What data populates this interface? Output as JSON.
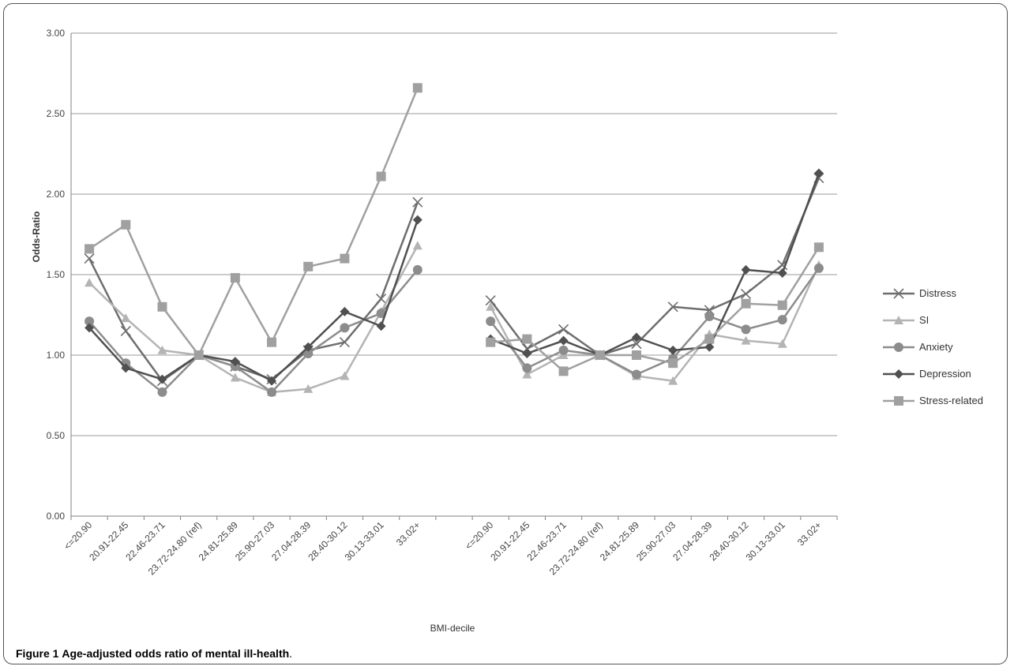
{
  "caption": {
    "label": "Figure 1",
    "text": "Age-adjusted odds ratio of mental ill-health"
  },
  "chart_data": {
    "type": "line",
    "xlabel": "BMI-decile",
    "ylabel": "Odds-Ratio",
    "ylim": [
      0,
      3
    ],
    "yticks": [
      "0.00",
      "0.50",
      "1.00",
      "1.50",
      "2.00",
      "2.50",
      "3.00"
    ],
    "grid": true,
    "legend_position": "right",
    "categories": [
      "<=20.90",
      "20.91-22.45",
      "22.46-23.71",
      "23.72-24.80 (ref)",
      "24.81-25.89",
      "25.90-27.03",
      "27.04-28.39",
      "28.40-30.12",
      "30.13-33.01",
      "33.02+"
    ],
    "groups": 2,
    "series": [
      {
        "name": "Distress",
        "marker": "x",
        "color": "#6e6e6e",
        "values": [
          [
            1.6,
            1.15,
            0.84,
            1.0,
            0.93,
            0.85,
            1.03,
            1.08,
            1.35,
            1.95
          ],
          [
            1.34,
            1.04,
            1.16,
            1.0,
            1.07,
            1.3,
            1.28,
            1.38,
            1.56,
            2.1
          ]
        ]
      },
      {
        "name": "SI",
        "marker": "triangle",
        "color": "#b4b4b4",
        "values": [
          [
            1.45,
            1.23,
            1.03,
            1.0,
            0.86,
            0.77,
            0.79,
            0.87,
            1.27,
            1.68
          ],
          [
            1.3,
            0.88,
            1.0,
            1.0,
            0.87,
            0.84,
            1.13,
            1.09,
            1.07,
            1.56
          ]
        ]
      },
      {
        "name": "Anxiety",
        "marker": "circle",
        "color": "#8c8c8c",
        "values": [
          [
            1.21,
            0.95,
            0.77,
            1.0,
            0.93,
            0.77,
            1.01,
            1.17,
            1.26,
            1.53
          ],
          [
            1.21,
            0.92,
            1.03,
            1.0,
            0.88,
            0.98,
            1.24,
            1.16,
            1.22,
            1.54
          ]
        ]
      },
      {
        "name": "Depression",
        "marker": "diamond",
        "color": "#505050",
        "values": [
          [
            1.17,
            0.92,
            0.85,
            1.0,
            0.96,
            0.84,
            1.05,
            1.27,
            1.18,
            1.84
          ],
          [
            1.1,
            1.01,
            1.09,
            1.0,
            1.11,
            1.03,
            1.05,
            1.53,
            1.51,
            2.13
          ]
        ]
      },
      {
        "name": "Stress-related",
        "marker": "square",
        "color": "#a0a0a0",
        "values": [
          [
            1.66,
            1.81,
            1.3,
            1.0,
            1.48,
            1.08,
            1.55,
            1.6,
            2.11,
            2.66
          ],
          [
            1.08,
            1.1,
            0.9,
            1.0,
            1.0,
            0.95,
            1.1,
            1.32,
            1.31,
            1.67
          ]
        ]
      }
    ]
  }
}
